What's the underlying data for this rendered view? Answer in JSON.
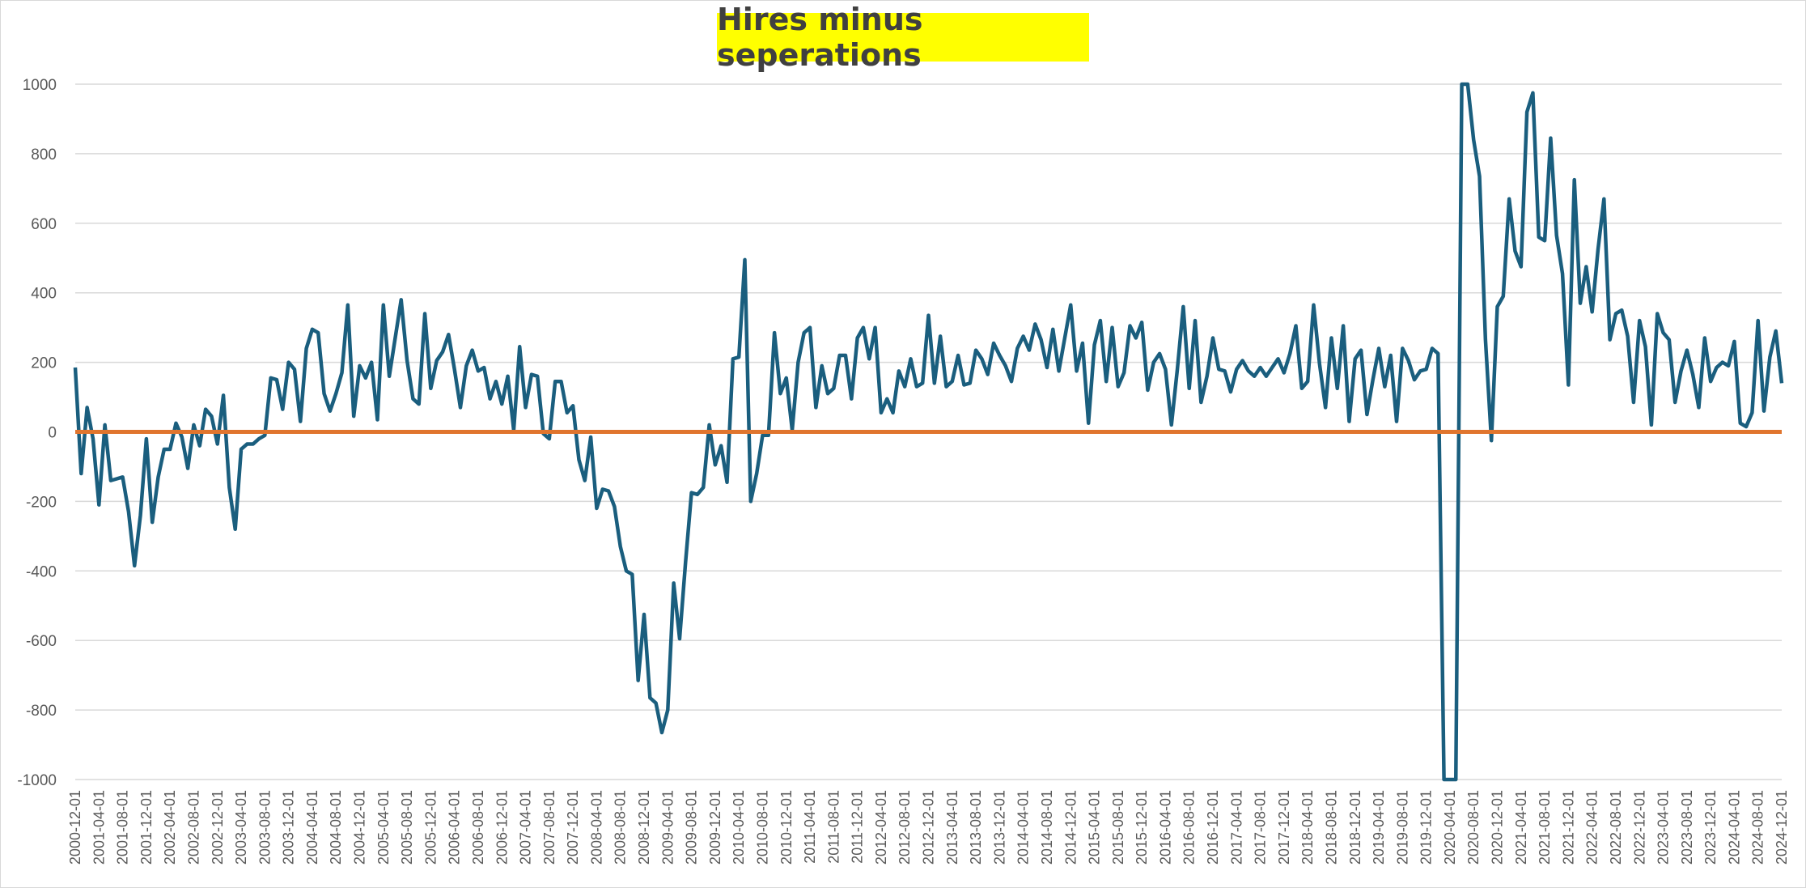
{
  "chart_data": {
    "type": "line",
    "title": "Hires minus seperations",
    "xlabel": "",
    "ylabel": "",
    "ylim": [
      -1000,
      1000
    ],
    "yticks": [
      1000,
      800,
      600,
      400,
      200,
      0,
      -200,
      -400,
      -600,
      -800,
      -1000
    ],
    "x_start": "2000-12-01",
    "x_end": "2024-12-01",
    "xtick_labels": [
      "2000-12-01",
      "2001-04-01",
      "2001-08-01",
      "2001-12-01",
      "2002-04-01",
      "2002-08-01",
      "2002-12-01",
      "2003-04-01",
      "2003-08-01",
      "2003-12-01",
      "2004-04-01",
      "2004-08-01",
      "2004-12-01",
      "2005-04-01",
      "2005-08-01",
      "2005-12-01",
      "2006-04-01",
      "2006-08-01",
      "2006-12-01",
      "2007-04-01",
      "2007-08-01",
      "2007-12-01",
      "2008-04-01",
      "2008-08-01",
      "2008-12-01",
      "2009-04-01",
      "2009-08-01",
      "2009-12-01",
      "2010-04-01",
      "2010-08-01",
      "2010-12-01",
      "2011-04-01",
      "2011-08-01",
      "2011-12-01",
      "2012-04-01",
      "2012-08-01",
      "2012-12-01",
      "2013-04-01",
      "2013-08-01",
      "2013-12-01",
      "2014-04-01",
      "2014-08-01",
      "2014-12-01",
      "2015-04-01",
      "2015-08-01",
      "2015-12-01",
      "2016-04-01",
      "2016-08-01",
      "2016-12-01",
      "2017-04-01",
      "2017-08-01",
      "2017-12-01",
      "2018-04-01",
      "2018-08-01",
      "2018-12-01",
      "2019-04-01",
      "2019-08-01",
      "2019-12-01",
      "2020-04-01",
      "2020-08-01",
      "2020-12-01",
      "2021-04-01",
      "2021-08-01",
      "2021-12-01",
      "2022-04-01",
      "2022-08-01",
      "2022-12-01",
      "2023-04-01",
      "2023-08-01",
      "2023-12-01",
      "2024-04-01",
      "2024-08-01",
      "2024-12-01"
    ],
    "series": [
      {
        "color": "#1a5e7e",
        "values": [
          185,
          -120,
          70,
          -20,
          -210,
          20,
          -140,
          -135,
          -130,
          -230,
          -385,
          -240,
          -20,
          -260,
          -130,
          -50,
          -50,
          25,
          -15,
          -105,
          20,
          -40,
          65,
          45,
          -35,
          105,
          -160,
          -280,
          -50,
          -35,
          -35,
          -20,
          -10,
          155,
          150,
          65,
          200,
          180,
          30,
          240,
          295,
          285,
          110,
          60,
          110,
          170,
          365,
          45,
          190,
          155,
          200,
          35,
          365,
          160,
          270,
          380,
          205,
          95,
          80,
          340,
          125,
          205,
          230,
          280,
          180,
          70,
          190,
          235,
          175,
          185,
          95,
          145,
          80,
          160,
          5,
          245,
          70,
          165,
          160,
          -5,
          -20,
          145,
          145,
          55,
          75,
          -80,
          -140,
          -15,
          -220,
          -165,
          -170,
          -215,
          -330,
          -400,
          -410,
          -715,
          -525,
          -765,
          -780,
          -865,
          -800,
          -435,
          -595,
          -375,
          -175,
          -180,
          -160,
          20,
          -95,
          -40,
          -145,
          210,
          215,
          495,
          -200,
          -120,
          -10,
          -10,
          285,
          110,
          155,
          5,
          200,
          285,
          300,
          70,
          190,
          110,
          125,
          220,
          220,
          95,
          270,
          300,
          210,
          300,
          55,
          95,
          55,
          175,
          130,
          210,
          130,
          140,
          335,
          140,
          275,
          130,
          145,
          220,
          135,
          140,
          235,
          210,
          165,
          255,
          220,
          190,
          145,
          240,
          275,
          235,
          310,
          265,
          185,
          295,
          175,
          270,
          365,
          175,
          255,
          25,
          250,
          320,
          145,
          300,
          130,
          170,
          305,
          270,
          315,
          120,
          200,
          225,
          180,
          20,
          180,
          360,
          125,
          320,
          85,
          160,
          270,
          180,
          175,
          115,
          180,
          205,
          175,
          160,
          185,
          160,
          185,
          210,
          170,
          225,
          305,
          125,
          145,
          365,
          195,
          70,
          270,
          125,
          305,
          30,
          210,
          235,
          50,
          150,
          240,
          130,
          220,
          30,
          240,
          205,
          150,
          175,
          180,
          240,
          225,
          -1000,
          -1000,
          -1000,
          1000,
          1000,
          840,
          735,
          265,
          -25,
          360,
          390,
          670,
          520,
          475,
          920,
          975,
          560,
          550,
          845,
          565,
          455,
          135,
          725,
          370,
          475,
          345,
          525,
          670,
          265,
          340,
          350,
          275,
          85,
          320,
          245,
          20,
          340,
          285,
          265,
          85,
          175,
          235,
          165,
          70,
          270,
          145,
          185,
          200,
          190,
          260,
          25,
          15,
          55,
          320,
          60,
          215,
          290,
          140
        ]
      },
      {
        "color": "#e0752e",
        "values": [
          0,
          0
        ]
      }
    ],
    "grid": true,
    "legend": "none"
  }
}
